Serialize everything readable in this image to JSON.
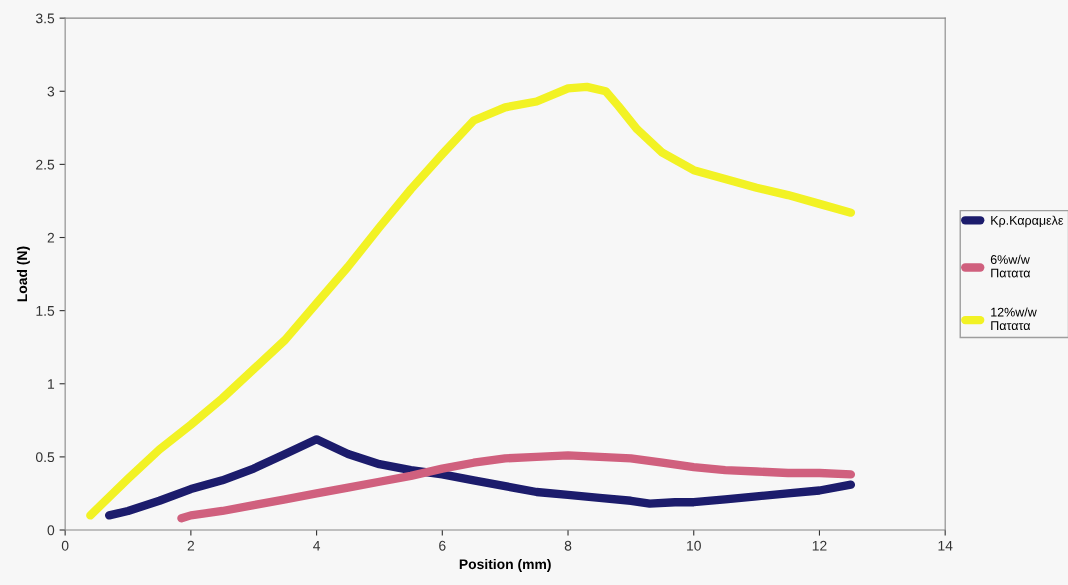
{
  "chart_data": {
    "type": "line",
    "xlabel": "Position (mm)",
    "ylabel": "Load (N)",
    "xlim": [
      0,
      14
    ],
    "xticks": [
      0,
      2,
      4,
      6,
      8,
      10,
      12,
      14
    ],
    "ylim": [
      0,
      3.5
    ],
    "yticks": [
      0,
      0.5,
      1,
      1.5,
      2,
      2.5,
      3,
      3.5
    ],
    "grid": false,
    "legend": "right",
    "line_style": "solid",
    "marker": "none",
    "series": [
      {
        "name": "Κρ.Καραμελε",
        "color": "#1c1c6c",
        "x": [
          0.7,
          1,
          1.5,
          2,
          2.5,
          3,
          3.5,
          4,
          4.5,
          5,
          5.5,
          6,
          6.5,
          7,
          7.5,
          8,
          8.5,
          9,
          9.3,
          9.7,
          10,
          10.5,
          11,
          11.5,
          12,
          12.5
        ],
        "values": [
          0.1,
          0.13,
          0.2,
          0.28,
          0.34,
          0.42,
          0.52,
          0.62,
          0.52,
          0.45,
          0.41,
          0.38,
          0.34,
          0.3,
          0.26,
          0.24,
          0.22,
          0.2,
          0.18,
          0.19,
          0.19,
          0.21,
          0.23,
          0.25,
          0.27,
          0.31
        ]
      },
      {
        "name": "6%w/w\nΠατατα",
        "color": "#d0607e",
        "x": [
          1.85,
          2,
          2.5,
          3,
          3.5,
          4,
          4.5,
          5,
          5.5,
          6,
          6.5,
          7,
          7.5,
          8,
          8.5,
          9,
          9.5,
          10,
          10.5,
          11,
          11.5,
          12,
          12.5
        ],
        "values": [
          0.08,
          0.1,
          0.13,
          0.17,
          0.21,
          0.25,
          0.29,
          0.33,
          0.37,
          0.42,
          0.46,
          0.49,
          0.5,
          0.51,
          0.5,
          0.49,
          0.46,
          0.43,
          0.41,
          0.4,
          0.39,
          0.39,
          0.38
        ]
      },
      {
        "name": "12%w/w\nΠατατα",
        "color": "#f2f224",
        "x": [
          0.4,
          1,
          1.5,
          2,
          2.5,
          3,
          3.5,
          4,
          4.5,
          5,
          5.5,
          6,
          6.5,
          7,
          7.5,
          8,
          8.3,
          8.6,
          8.8,
          9.1,
          9.5,
          10,
          10.5,
          11,
          11.5,
          12,
          12.5
        ],
        "values": [
          0.1,
          0.35,
          0.55,
          0.72,
          0.9,
          1.1,
          1.3,
          1.55,
          1.8,
          2.07,
          2.33,
          2.57,
          2.8,
          2.89,
          2.93,
          3.02,
          3.03,
          3.0,
          2.9,
          2.74,
          2.58,
          2.46,
          2.4,
          2.34,
          2.29,
          2.23,
          2.17
        ]
      }
    ]
  }
}
